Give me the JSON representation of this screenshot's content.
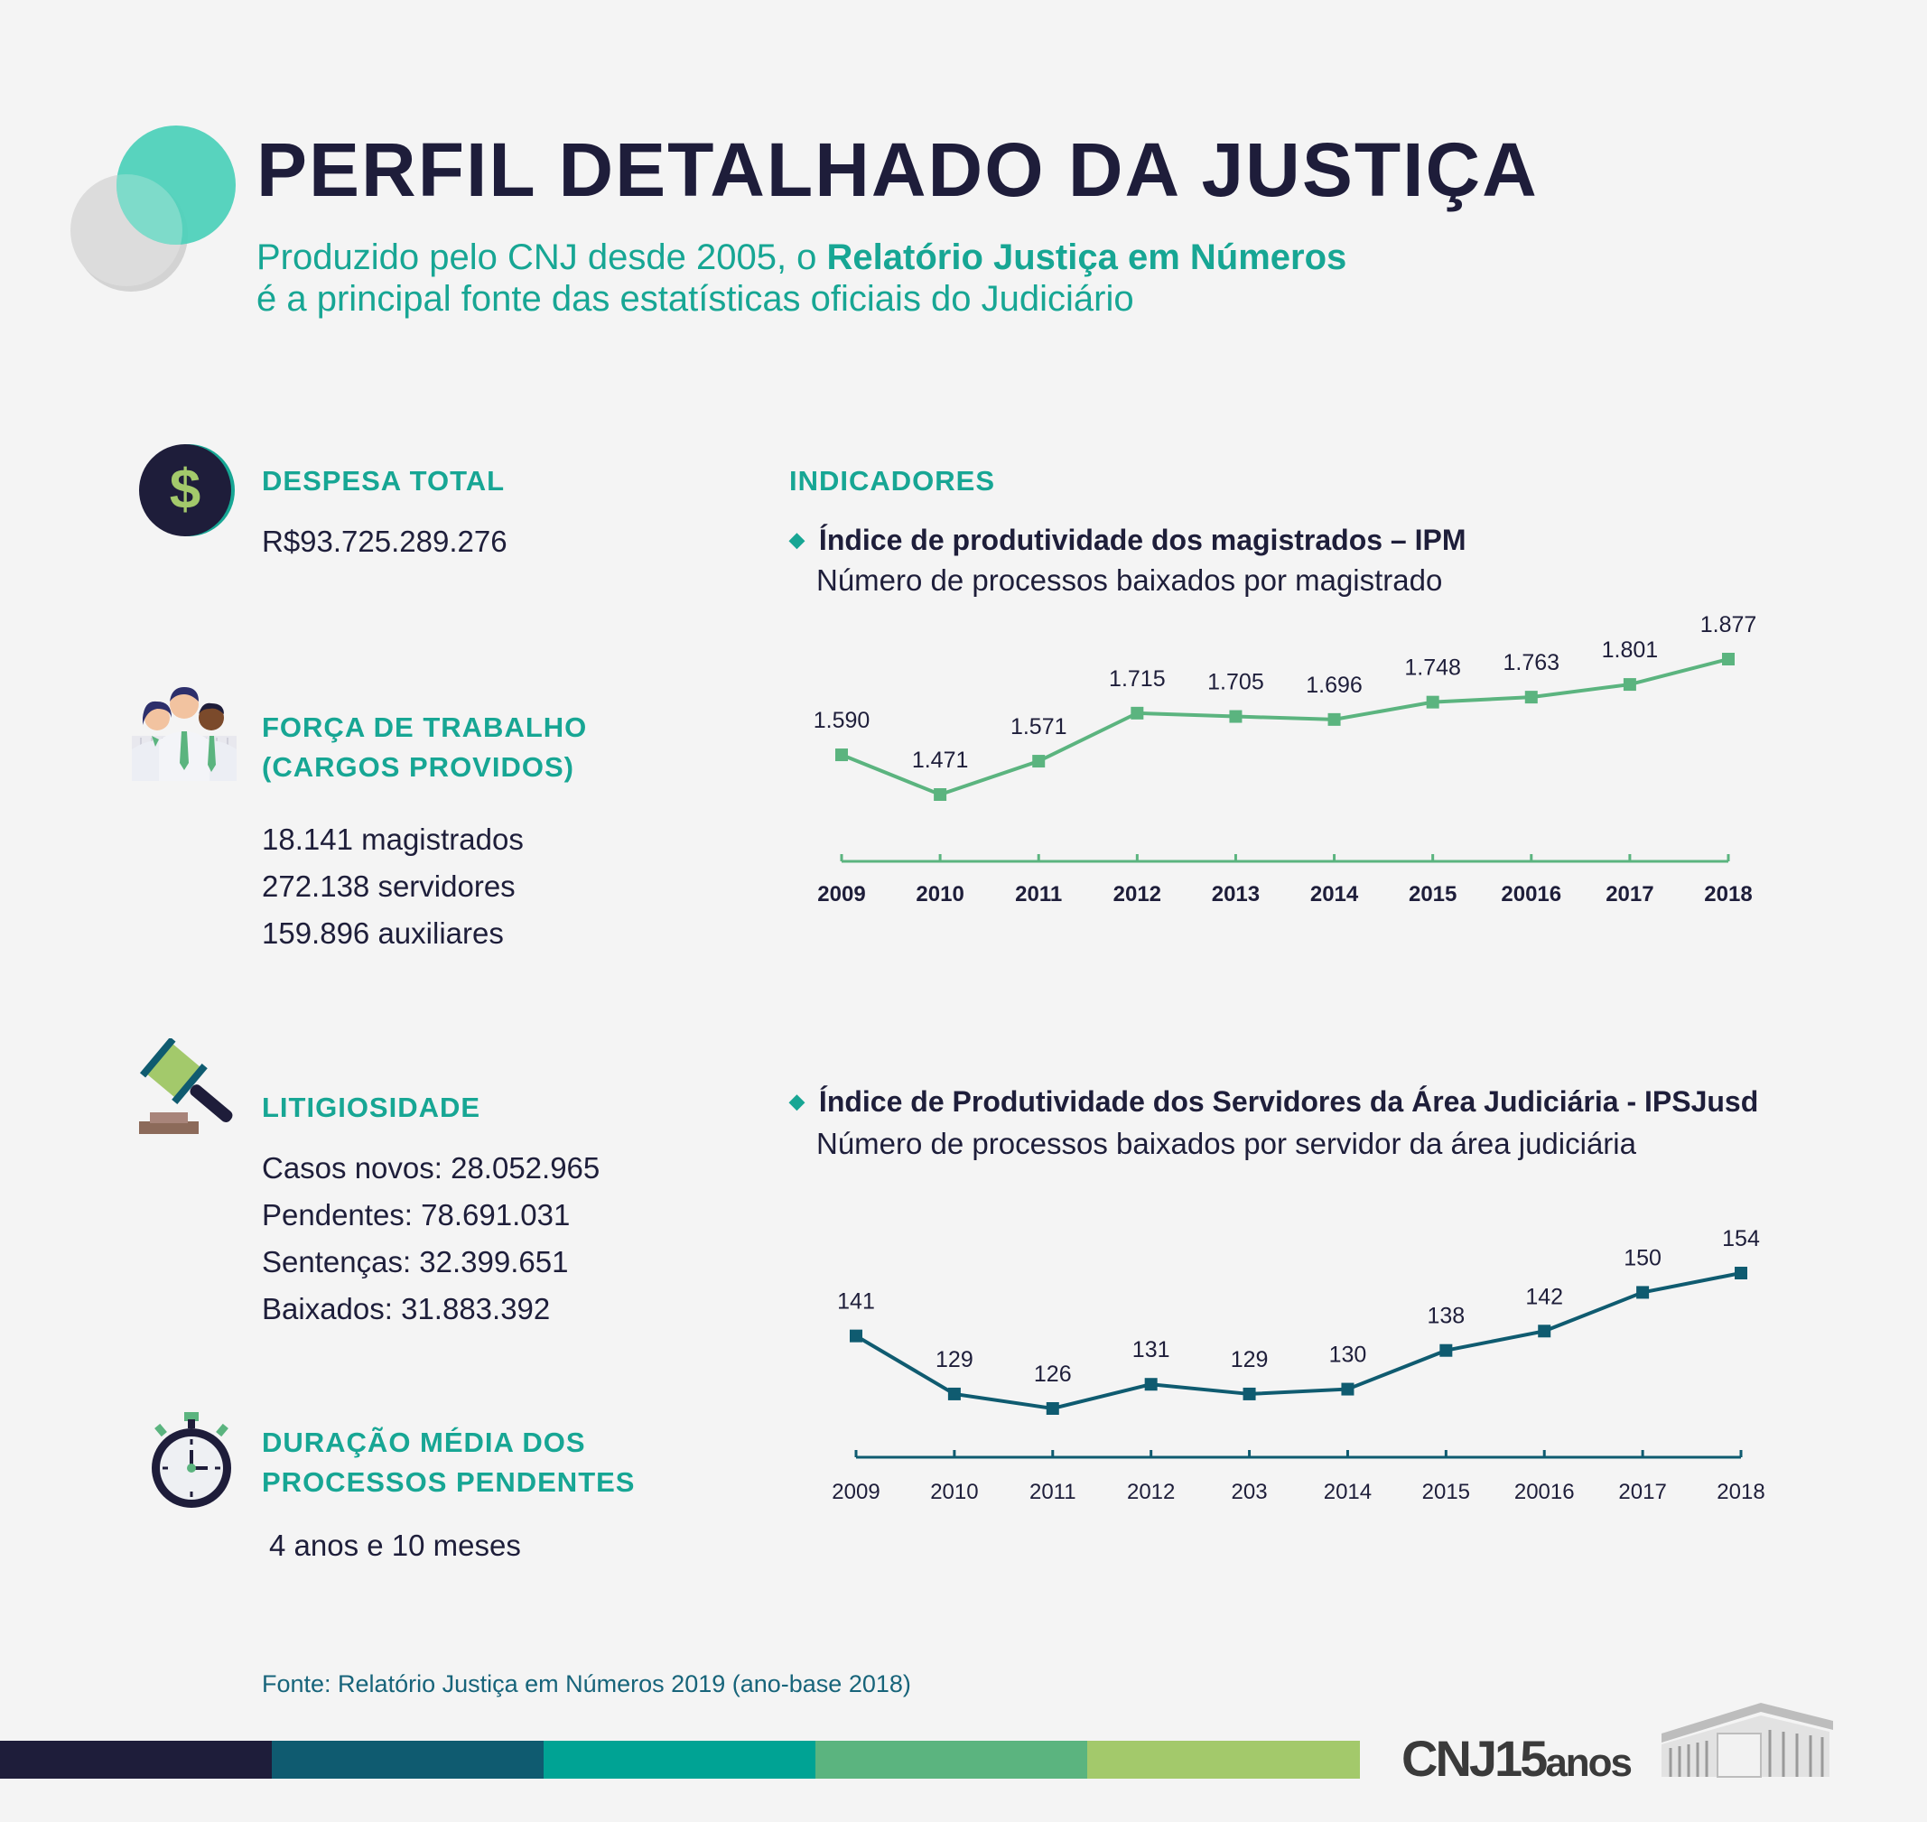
{
  "header": {
    "title": "PERFIL DETALHADO DA JUSTIÇA",
    "subtitle_pre": "Produzido pelo CNJ desde 2005, o ",
    "subtitle_bold": "Relatório Justiça em Números",
    "subtitle_line2": "é a principal fonte das estatísticas oficiais do Judiciário"
  },
  "despesa": {
    "heading": "DESPESA TOTAL",
    "value": "R$93.725.289.276"
  },
  "forca": {
    "heading_line1": "FORÇA DE TRABALHO",
    "heading_line2": "(CARGOS PROVIDOS)",
    "items": [
      "18.141 magistrados",
      "272.138 servidores",
      "159.896 auxiliares"
    ]
  },
  "litigiosidade": {
    "heading": "LITIGIOSIDADE",
    "items": [
      "Casos novos: 28.052.965",
      "Pendentes: 78.691.031",
      "Sentenças: 32.399.651",
      "Baixados: 31.883.392"
    ]
  },
  "duracao": {
    "heading_line1": "DURAÇÃO MÉDIA DOS",
    "heading_line2": "PROCESSOS PENDENTES",
    "value": "4 anos e 10 meses"
  },
  "indicadores": {
    "heading": "INDICADORES"
  },
  "chart_data": [
    {
      "type": "line",
      "title": "Índice de produtividade dos magistrados – IPM",
      "subtitle": "Número de processos baixados por magistrado",
      "categories": [
        "2009",
        "2010",
        "2011",
        "2012",
        "2013",
        "2014",
        "2015",
        "20016",
        "2017",
        "2018"
      ],
      "values": [
        1590,
        1471,
        1571,
        1715,
        1705,
        1696,
        1748,
        1763,
        1801,
        1877
      ],
      "data_labels": [
        "1.590",
        "1.471",
        "1.571",
        "1.715",
        "1.705",
        "1.696",
        "1.748",
        "1.763",
        "1.801",
        "1.877"
      ],
      "color": "#5bb47f",
      "ylim": [
        1350,
        1900
      ],
      "grid": false
    },
    {
      "type": "line",
      "title": "Índice de Produtividade dos Servidores da Área Judiciária - IPSJusd",
      "subtitle": "Número de processos baixados por servidor da área judiciária",
      "categories": [
        "2009",
        "2010",
        "2011",
        "2012",
        "203",
        "2014",
        "2015",
        "20016",
        "2017",
        "2018"
      ],
      "values": [
        141,
        129,
        126,
        131,
        129,
        130,
        138,
        142,
        150,
        154
      ],
      "data_labels": [
        "141",
        "129",
        "126",
        "131",
        "129",
        "130",
        "138",
        "142",
        "150",
        "154"
      ],
      "color": "#0f5b70",
      "ylim": [
        110,
        160
      ],
      "grid": false
    }
  ],
  "footer": {
    "source": "Fonte: Relatório Justiça em Números 2019 (ano-base 2018)",
    "logo_main": "CNJ",
    "logo_num": "15",
    "logo_suffix": "anos",
    "bar_colors": [
      "#1e1d3a",
      "#0f5b70",
      "#00a394",
      "#5bb47f",
      "#a3c96b"
    ]
  }
}
